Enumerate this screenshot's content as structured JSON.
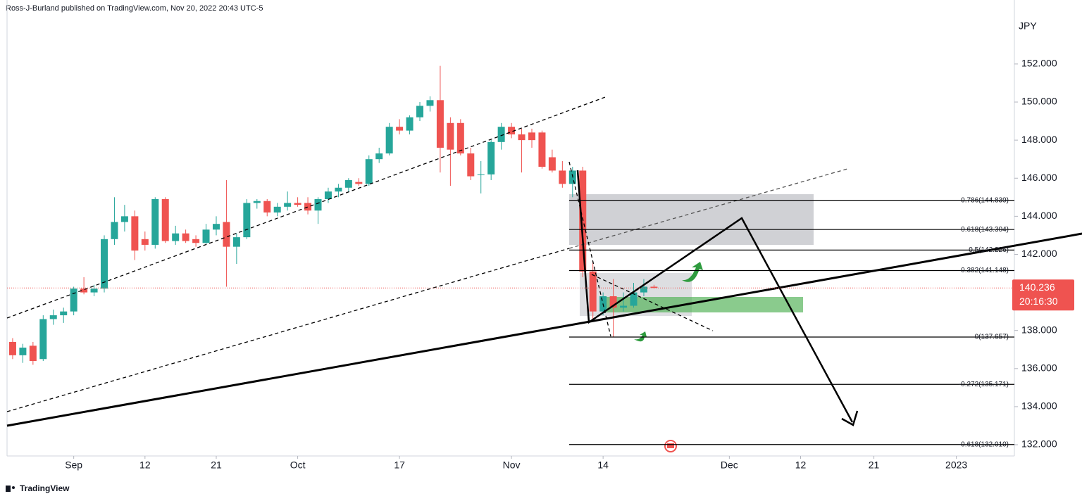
{
  "header": {
    "text": "Ross-J-Burland published on TradingView.com, Nov 20, 2022 20:43 UTC-5"
  },
  "footer": {
    "text": "TradingView"
  },
  "chart_data": {
    "type": "candlestick",
    "currency": "JPY",
    "up_color": "#26a69a",
    "down_color": "#ef5350",
    "ohlc": [
      [
        137.4,
        137.6,
        136.5,
        136.7
      ],
      [
        136.7,
        137.3,
        136.3,
        137.1
      ],
      [
        137.2,
        137.4,
        136.2,
        136.4
      ],
      [
        136.5,
        138.8,
        136.4,
        138.6
      ],
      [
        138.6,
        139.1,
        138.3,
        138.8
      ],
      [
        138.8,
        139.2,
        138.4,
        139.0
      ],
      [
        139.0,
        140.3,
        138.8,
        140.2
      ],
      [
        140.2,
        140.8,
        139.9,
        140.0
      ],
      [
        140.0,
        140.4,
        139.8,
        140.2
      ],
      [
        140.2,
        143.0,
        140.0,
        142.8
      ],
      [
        142.8,
        145.0,
        142.5,
        143.7
      ],
      [
        143.7,
        144.6,
        143.2,
        144.0
      ],
      [
        144.0,
        144.3,
        141.7,
        142.2
      ],
      [
        142.8,
        143.2,
        142.2,
        142.5
      ],
      [
        142.5,
        145.0,
        142.3,
        144.9
      ],
      [
        144.9,
        145.0,
        142.6,
        142.7
      ],
      [
        142.7,
        143.5,
        142.5,
        143.1
      ],
      [
        143.1,
        143.3,
        142.6,
        142.7
      ],
      [
        142.8,
        143.0,
        142.4,
        142.6
      ],
      [
        142.6,
        143.6,
        142.5,
        143.3
      ],
      [
        143.3,
        144.0,
        143.0,
        143.6
      ],
      [
        143.7,
        145.9,
        140.3,
        142.4
      ],
      [
        142.4,
        143.1,
        141.5,
        142.9
      ],
      [
        142.9,
        144.9,
        142.8,
        144.7
      ],
      [
        144.7,
        144.9,
        144.4,
        144.8
      ],
      [
        144.8,
        144.9,
        144.0,
        144.2
      ],
      [
        144.2,
        144.7,
        144.0,
        144.5
      ],
      [
        144.5,
        145.3,
        144.3,
        144.7
      ],
      [
        144.7,
        145.0,
        144.5,
        144.6
      ],
      [
        144.7,
        145.0,
        144.1,
        144.3
      ],
      [
        144.3,
        145.0,
        143.6,
        144.9
      ],
      [
        144.9,
        145.5,
        144.7,
        145.3
      ],
      [
        145.3,
        145.7,
        145.0,
        145.5
      ],
      [
        145.5,
        146.0,
        145.3,
        145.9
      ],
      [
        145.8,
        146.0,
        145.6,
        145.7
      ],
      [
        145.7,
        147.2,
        145.6,
        147.0
      ],
      [
        147.0,
        147.6,
        146.8,
        147.3
      ],
      [
        147.3,
        148.9,
        147.2,
        148.7
      ],
      [
        148.7,
        149.1,
        148.3,
        148.5
      ],
      [
        148.5,
        149.3,
        148.3,
        149.2
      ],
      [
        149.2,
        150.0,
        149.0,
        149.8
      ],
      [
        149.8,
        150.3,
        149.5,
        150.1
      ],
      [
        150.1,
        151.9,
        146.3,
        147.6
      ],
      [
        148.9,
        149.2,
        145.6,
        147.5
      ],
      [
        148.9,
        149.1,
        147.2,
        147.3
      ],
      [
        147.3,
        147.6,
        145.9,
        146.1
      ],
      [
        146.2,
        146.9,
        145.2,
        146.2
      ],
      [
        146.2,
        148.0,
        145.9,
        147.9
      ],
      [
        147.9,
        148.9,
        147.5,
        148.7
      ],
      [
        148.7,
        148.9,
        148.1,
        148.3
      ],
      [
        148.3,
        148.6,
        146.3,
        148.0
      ],
      [
        148.4,
        148.6,
        147.6,
        148.0
      ],
      [
        148.4,
        148.5,
        146.5,
        146.6
      ],
      [
        147.1,
        147.5,
        146.3,
        146.4
      ],
      [
        146.4,
        146.9,
        145.5,
        145.7
      ],
      [
        145.7,
        146.6,
        145.0,
        146.4
      ],
      [
        146.4,
        146.6,
        140.8,
        141.1
      ],
      [
        141.1,
        141.6,
        138.5,
        139.0
      ],
      [
        139.0,
        140.0,
        138.8,
        139.8
      ],
      [
        139.8,
        140.7,
        137.657,
        139.2
      ],
      [
        139.2,
        140.0,
        139.0,
        139.3
      ],
      [
        139.3,
        140.5,
        139.2,
        140.0
      ],
      [
        140.0,
        140.7,
        139.8,
        140.3
      ],
      [
        140.3,
        140.4,
        140.2,
        140.236
      ]
    ],
    "xlim": [
      -0.55,
      98.4
    ],
    "xticks": [
      {
        "value": 6,
        "label": "Sep"
      },
      {
        "value": 13,
        "label": "12"
      },
      {
        "value": 20,
        "label": "21"
      },
      {
        "value": 28,
        "label": "Oct"
      },
      {
        "value": 38,
        "label": "17"
      },
      {
        "value": 49,
        "label": "Nov"
      },
      {
        "value": 58,
        "label": "14"
      },
      {
        "value": 70.4,
        "label": "Dec"
      },
      {
        "value": 77.4,
        "label": "12"
      },
      {
        "value": 84.6,
        "label": "21"
      },
      {
        "value": 92.7,
        "label": "2023"
      }
    ],
    "ylim": [
      131.41,
      155.36
    ],
    "yticks": [
      {
        "value": 132,
        "label": "132.000"
      },
      {
        "value": 134,
        "label": "134.000"
      },
      {
        "value": 136,
        "label": "136.000"
      },
      {
        "value": 138,
        "label": "138.000"
      },
      {
        "value": 140,
        "label": "140.000"
      },
      {
        "value": 142,
        "label": "142.000"
      },
      {
        "value": 144,
        "label": "144.000"
      },
      {
        "value": 146,
        "label": "146.000"
      },
      {
        "value": 148,
        "label": "148.000"
      },
      {
        "value": 150,
        "label": "150.000"
      },
      {
        "value": 152,
        "label": "152.000"
      }
    ],
    "last_price": 140.236,
    "countdown": "20:16:30",
    "fib_levels": [
      {
        "value": 144.839,
        "label": "0.786(144.839)"
      },
      {
        "value": 143.304,
        "label": "0.618(143.304)"
      },
      {
        "value": 142.226,
        "label": "0.5(142.226)"
      },
      {
        "value": 141.148,
        "label": "0.382(141.148)"
      },
      {
        "value": 137.657,
        "label": "0(137.657)"
      },
      {
        "value": 135.171,
        "label": "-0.272(135.171)"
      },
      {
        "value": 132.01,
        "label": "-0.618(132.010)"
      }
    ]
  }
}
